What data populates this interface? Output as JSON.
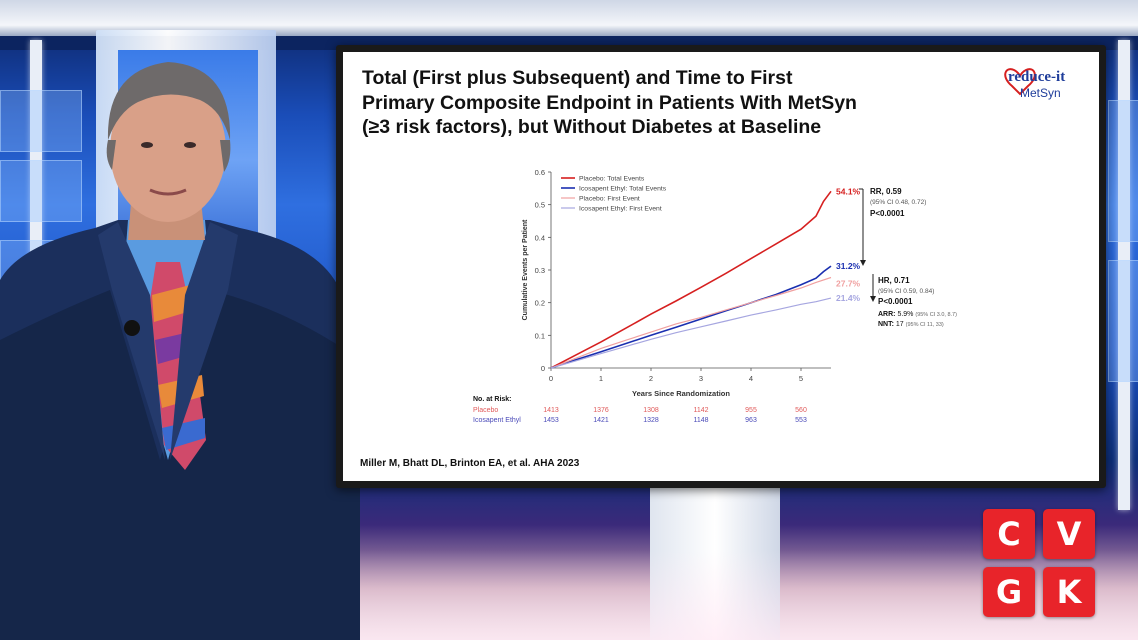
{
  "slide": {
    "title_lines": [
      "Total (First plus Subsequent) and Time to First",
      "Primary Composite Endpoint in Patients With MetSyn",
      "(≥3 risk factors), but Without Diabetes at Baseline"
    ],
    "citation": "Miller M, Bhatt DL, Brinton EA, et al. AHA 2023",
    "logo": {
      "brand": "reduce-it",
      "sub": "MetSyn",
      "color": "#1e3c9a"
    }
  },
  "broadcast_logo": {
    "letters": [
      "C",
      "V",
      "G",
      "K"
    ],
    "color": "#e8242a"
  },
  "chart_data": {
    "type": "line",
    "xlabel": "Years Since Randomization",
    "ylabel": "Cumulative Events per Patient",
    "xlim": [
      0,
      5.6
    ],
    "ylim": [
      0,
      0.6
    ],
    "x_ticks": [
      "0",
      "1",
      "2",
      "3",
      "4",
      "5"
    ],
    "y_ticks": [
      "0",
      "0.1",
      "0.2",
      "0.3",
      "0.4",
      "0.5",
      "0.6"
    ],
    "legend_position": "top-left",
    "series": [
      {
        "name": "Placebo: Total Events",
        "color": "#d62020",
        "width": 1.6,
        "end_label": "54.1%",
        "points": [
          [
            0,
            0
          ],
          [
            0.5,
            0.04
          ],
          [
            1,
            0.08
          ],
          [
            1.5,
            0.122
          ],
          [
            2,
            0.165
          ],
          [
            2.5,
            0.205
          ],
          [
            3,
            0.247
          ],
          [
            3.5,
            0.29
          ],
          [
            4,
            0.335
          ],
          [
            4.5,
            0.38
          ],
          [
            5,
            0.425
          ],
          [
            5.3,
            0.465
          ],
          [
            5.45,
            0.51
          ],
          [
            5.6,
            0.541
          ]
        ]
      },
      {
        "name": "Icosapent Ethyl: Total Events",
        "color": "#1a2fb0",
        "width": 1.6,
        "end_label": "31.2%",
        "points": [
          [
            0,
            0
          ],
          [
            0.5,
            0.025
          ],
          [
            1,
            0.05
          ],
          [
            1.5,
            0.075
          ],
          [
            2,
            0.1
          ],
          [
            2.5,
            0.125
          ],
          [
            3,
            0.15
          ],
          [
            3.5,
            0.175
          ],
          [
            4,
            0.2
          ],
          [
            4.5,
            0.225
          ],
          [
            5,
            0.255
          ],
          [
            5.3,
            0.275
          ],
          [
            5.45,
            0.295
          ],
          [
            5.6,
            0.312
          ]
        ]
      },
      {
        "name": "Placebo: First Event",
        "color": "#f0a0a0",
        "width": 1.2,
        "end_label": "27.7%",
        "points": [
          [
            0,
            0
          ],
          [
            0.5,
            0.03
          ],
          [
            1,
            0.06
          ],
          [
            1.5,
            0.085
          ],
          [
            2,
            0.11
          ],
          [
            2.5,
            0.135
          ],
          [
            3,
            0.155
          ],
          [
            3.5,
            0.178
          ],
          [
            4,
            0.2
          ],
          [
            4.5,
            0.222
          ],
          [
            5,
            0.245
          ],
          [
            5.3,
            0.262
          ],
          [
            5.6,
            0.277
          ]
        ]
      },
      {
        "name": "Icosapent Ethyl: First Event",
        "color": "#a6a6e0",
        "width": 1.2,
        "end_label": "21.4%",
        "points": [
          [
            0,
            0
          ],
          [
            0.5,
            0.022
          ],
          [
            1,
            0.044
          ],
          [
            1.5,
            0.066
          ],
          [
            2,
            0.088
          ],
          [
            2.5,
            0.108
          ],
          [
            3,
            0.126
          ],
          [
            3.5,
            0.144
          ],
          [
            4,
            0.162
          ],
          [
            4.5,
            0.178
          ],
          [
            5,
            0.195
          ],
          [
            5.3,
            0.203
          ],
          [
            5.6,
            0.214
          ]
        ]
      }
    ],
    "annotations": {
      "rr": {
        "label": "RR, 0.59",
        "ci": "(95% CI 0.48, 0.72)",
        "p": "P<0.0001"
      },
      "hr": {
        "label": "HR, 0.71",
        "ci": "(95% CI 0.59, 0.84)",
        "p": "P<0.0001",
        "arr_label": "ARR:",
        "arr_value": "5.9%",
        "arr_ci": "(95% CI 3.0, 8.7)",
        "nnt_label": "NNT:",
        "nnt_value": "17",
        "nnt_ci": "(95% CI 11, 33)"
      }
    },
    "risk_table": {
      "header": "No. at Risk:",
      "rows": [
        {
          "label": "Placebo",
          "color": "#e05a5a",
          "values": [
            "1413",
            "1376",
            "1308",
            "1142",
            "955",
            "560"
          ]
        },
        {
          "label": "Icosapent Ethyl",
          "color": "#4a4ab8",
          "values": [
            "1453",
            "1421",
            "1328",
            "1148",
            "963",
            "553"
          ]
        }
      ]
    }
  }
}
